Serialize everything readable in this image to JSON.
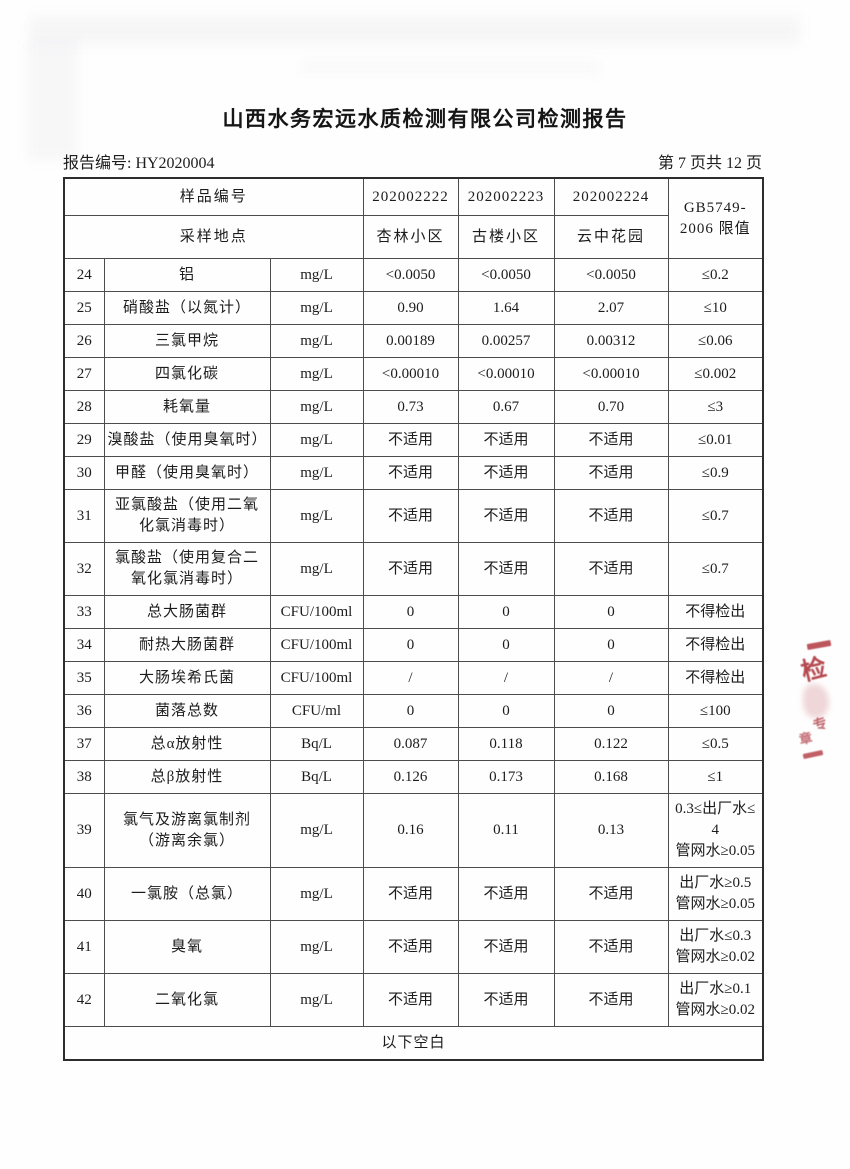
{
  "page": {
    "title": "山西水务宏远水质检测有限公司检测报告",
    "report_no": "报告编号: HY2020004",
    "page_indicator": "第 7 页共 12 页"
  },
  "table": {
    "header": {
      "sample_no_label": "样品编号",
      "location_label": "采样地点",
      "sample_ids": [
        "202002222",
        "202002223",
        "202002224"
      ],
      "locations": [
        "杏林小区",
        "古楼小区",
        "云中花园"
      ],
      "standard_limit": "GB5749-\n2006 限值"
    },
    "rows": [
      {
        "no": "24",
        "name": "铝",
        "unit": "mg/L",
        "values": [
          "<0.0050",
          "<0.0050",
          "<0.0050"
        ],
        "limit": "≤0.2"
      },
      {
        "no": "25",
        "name": "硝酸盐（以氮计）",
        "unit": "mg/L",
        "values": [
          "0.90",
          "1.64",
          "2.07"
        ],
        "limit": "≤10"
      },
      {
        "no": "26",
        "name": "三氯甲烷",
        "unit": "mg/L",
        "values": [
          "0.00189",
          "0.00257",
          "0.00312"
        ],
        "limit": "≤0.06"
      },
      {
        "no": "27",
        "name": "四氯化碳",
        "unit": "mg/L",
        "values": [
          "<0.00010",
          "<0.00010",
          "<0.00010"
        ],
        "limit": "≤0.002"
      },
      {
        "no": "28",
        "name": "耗氧量",
        "unit": "mg/L",
        "values": [
          "0.73",
          "0.67",
          "0.70"
        ],
        "limit": "≤3"
      },
      {
        "no": "29",
        "name": "溴酸盐（使用臭氧时）",
        "unit": "mg/L",
        "values": [
          "不适用",
          "不适用",
          "不适用"
        ],
        "limit": "≤0.01"
      },
      {
        "no": "30",
        "name": "甲醛（使用臭氧时）",
        "unit": "mg/L",
        "values": [
          "不适用",
          "不适用",
          "不适用"
        ],
        "limit": "≤0.9"
      },
      {
        "no": "31",
        "name": "亚氯酸盐（使用二氧\n化氯消毒时）",
        "unit": "mg/L",
        "values": [
          "不适用",
          "不适用",
          "不适用"
        ],
        "limit": "≤0.7"
      },
      {
        "no": "32",
        "name": "氯酸盐（使用复合二\n氧化氯消毒时）",
        "unit": "mg/L",
        "values": [
          "不适用",
          "不适用",
          "不适用"
        ],
        "limit": "≤0.7"
      },
      {
        "no": "33",
        "name": "总大肠菌群",
        "unit": "CFU/100ml",
        "values": [
          "0",
          "0",
          "0"
        ],
        "limit": "不得检出"
      },
      {
        "no": "34",
        "name": "耐热大肠菌群",
        "unit": "CFU/100ml",
        "values": [
          "0",
          "0",
          "0"
        ],
        "limit": "不得检出"
      },
      {
        "no": "35",
        "name": "大肠埃希氏菌",
        "unit": "CFU/100ml",
        "values": [
          "/",
          "/",
          "/"
        ],
        "limit": "不得检出"
      },
      {
        "no": "36",
        "name": "菌落总数",
        "unit": "CFU/ml",
        "values": [
          "0",
          "0",
          "0"
        ],
        "limit": "≤100"
      },
      {
        "no": "37",
        "name": "总α放射性",
        "unit": "Bq/L",
        "values": [
          "0.087",
          "0.118",
          "0.122"
        ],
        "limit": "≤0.5"
      },
      {
        "no": "38",
        "name": "总β放射性",
        "unit": "Bq/L",
        "values": [
          "0.126",
          "0.173",
          "0.168"
        ],
        "limit": "≤1"
      },
      {
        "no": "39",
        "name": "氯气及游离氯制剂\n（游离余氯）",
        "unit": "mg/L",
        "values": [
          "0.16",
          "0.11",
          "0.13"
        ],
        "limit": "0.3≤出厂水≤4\n管网水≥0.05"
      },
      {
        "no": "40",
        "name": "一氯胺（总氯）",
        "unit": "mg/L",
        "values": [
          "不适用",
          "不适用",
          "不适用"
        ],
        "limit": "出厂水≥0.5\n管网水≥0.05"
      },
      {
        "no": "41",
        "name": "臭氧",
        "unit": "mg/L",
        "values": [
          "不适用",
          "不适用",
          "不适用"
        ],
        "limit": "出厂水≤0.3\n管网水≥0.02"
      },
      {
        "no": "42",
        "name": "二氧化氯",
        "unit": "mg/L",
        "values": [
          "不适用",
          "不适用",
          "不适用"
        ],
        "limit": "出厂水≥0.1\n管网水≥0.02"
      }
    ],
    "footer_note": "以下空白"
  },
  "stamp": {
    "char_top": "检",
    "char_mid": "专",
    "char_bottom": "章",
    "color": "#b23840"
  }
}
